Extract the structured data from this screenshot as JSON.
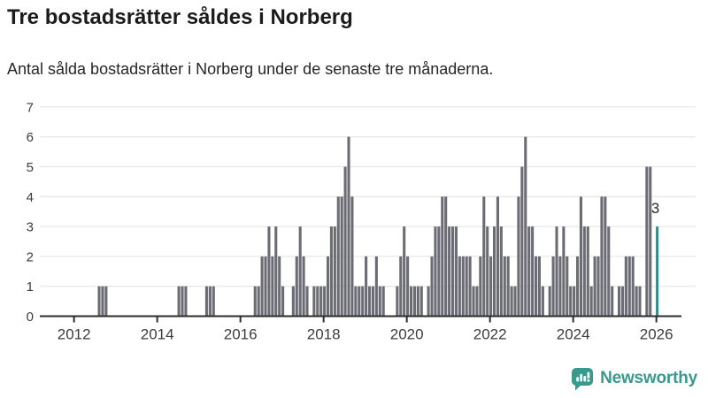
{
  "header": {
    "title": "Tre bostadsrätter såldes i Norberg",
    "subtitle": "Antal sålda bostadsrätter i Norberg under de senaste tre månaderna."
  },
  "chart_data": {
    "type": "bar",
    "title": "Tre bostadsrätter såldes i Norberg",
    "xlabel": "",
    "ylabel": "",
    "frequency": "monthly",
    "x_start": "2011-04",
    "x_end": "2026-01",
    "values": [
      0,
      0,
      0,
      0,
      0,
      0,
      0,
      0,
      0,
      0,
      0,
      0,
      0,
      0,
      0,
      0,
      1,
      1,
      1,
      0,
      0,
      0,
      0,
      0,
      0,
      0,
      0,
      0,
      0,
      0,
      0,
      0,
      0,
      0,
      0,
      0,
      0,
      0,
      0,
      1,
      1,
      1,
      0,
      0,
      0,
      0,
      0,
      1,
      1,
      1,
      0,
      0,
      0,
      0,
      0,
      0,
      0,
      0,
      0,
      0,
      0,
      1,
      1,
      2,
      2,
      3,
      2,
      3,
      2,
      1,
      0,
      0,
      1,
      2,
      3,
      2,
      1,
      0,
      1,
      1,
      1,
      1,
      2,
      3,
      3,
      4,
      4,
      5,
      6,
      4,
      1,
      1,
      1,
      2,
      1,
      1,
      2,
      1,
      1,
      0,
      0,
      0,
      1,
      2,
      3,
      2,
      1,
      1,
      1,
      1,
      0,
      1,
      2,
      3,
      3,
      4,
      4,
      3,
      3,
      3,
      2,
      2,
      2,
      2,
      1,
      1,
      2,
      4,
      3,
      2,
      3,
      4,
      3,
      2,
      2,
      1,
      1,
      4,
      5,
      6,
      3,
      3,
      2,
      2,
      1,
      0,
      1,
      2,
      3,
      2,
      3,
      2,
      1,
      1,
      2,
      4,
      3,
      3,
      1,
      2,
      2,
      4,
      4,
      3,
      1,
      0,
      1,
      1,
      2,
      2,
      2,
      1,
      1,
      0,
      5,
      5,
      0,
      3
    ],
    "highlight": {
      "index": 177,
      "value": 3,
      "label": "3",
      "date": "2026-01"
    },
    "xticks": [
      2012,
      2014,
      2016,
      2018,
      2020,
      2022,
      2024,
      2026
    ],
    "yticks": [
      0,
      1,
      2,
      3,
      4,
      5,
      6,
      7
    ],
    "ylim": [
      0,
      7
    ],
    "grid": true,
    "legend": null,
    "bar_color": "#6c6c74",
    "highlight_color": "#0d9f9a",
    "grid_color": "#e8e8e8",
    "axis_color": "#2d2d2d",
    "tick_label_color": "#3c3c3c",
    "annotation_color": "#262626"
  },
  "footer": {
    "brand": "Newsworthy",
    "brand_color": "#38998c",
    "icon": "newsworthy-logo-icon"
  }
}
